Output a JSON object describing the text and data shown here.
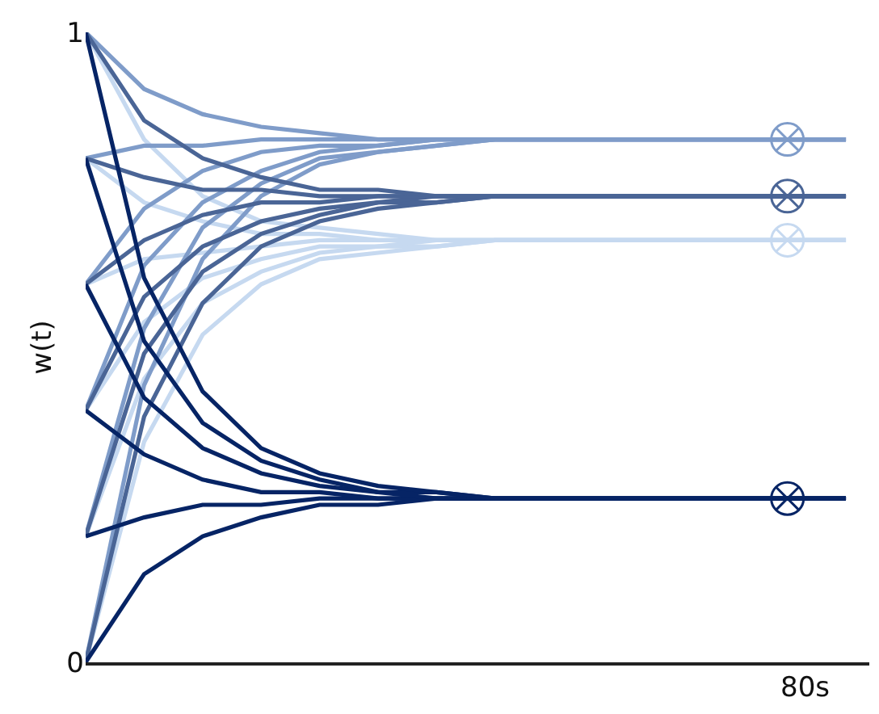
{
  "chart_data": {
    "type": "line",
    "ylabel": "w(t)",
    "annotations": [
      "80s"
    ],
    "categories": [
      null,
      null,
      null,
      null,
      null,
      null,
      null,
      null,
      null,
      null,
      null,
      null,
      null,
      null
    ],
    "ylim": [
      0,
      1
    ],
    "yticks": [
      0,
      1
    ],
    "line_style": "solid",
    "series": [
      {
        "color": "#c6d9f0",
        "values": [
          0,
          0.35,
          0.52,
          0.6,
          0.64,
          0.65,
          0.66,
          0.67,
          0.67,
          0.67,
          0.67,
          0.67,
          0.67,
          0.67
        ]
      },
      {
        "color": "#c6d9f0",
        "values": [
          0.2,
          0.45,
          0.57,
          0.62,
          0.65,
          0.66,
          0.66,
          0.67,
          0.67,
          0.67,
          0.67,
          0.67,
          0.67,
          0.67
        ]
      },
      {
        "color": "#c6d9f0",
        "values": [
          0.4,
          0.54,
          0.61,
          0.64,
          0.66,
          0.66,
          0.67,
          0.67,
          0.67,
          0.67,
          0.67,
          0.67,
          0.67,
          0.67
        ]
      },
      {
        "color": "#c6d9f0",
        "values": [
          0.6,
          0.64,
          0.65,
          0.66,
          0.67,
          0.67,
          0.67,
          0.67,
          0.67,
          0.67,
          0.67,
          0.67,
          0.67,
          0.67
        ]
      },
      {
        "color": "#c6d9f0",
        "values": [
          0.8,
          0.73,
          0.7,
          0.68,
          0.68,
          0.67,
          0.67,
          0.67,
          0.67,
          0.67,
          0.67,
          0.67,
          0.67,
          0.67
        ]
      },
      {
        "color": "#c6d9f0",
        "values": [
          1.0,
          0.83,
          0.74,
          0.7,
          0.69,
          0.68,
          0.67,
          0.67,
          0.67,
          0.67,
          0.67,
          0.67,
          0.67,
          0.67
        ]
      },
      {
        "color": "#7f9cc9",
        "values": [
          0,
          0.44,
          0.64,
          0.74,
          0.79,
          0.81,
          0.82,
          0.83,
          0.83,
          0.83,
          0.83,
          0.83,
          0.83,
          0.83
        ]
      },
      {
        "color": "#7f9cc9",
        "values": [
          0.2,
          0.53,
          0.69,
          0.76,
          0.8,
          0.81,
          0.82,
          0.83,
          0.83,
          0.83,
          0.83,
          0.83,
          0.83,
          0.83
        ]
      },
      {
        "color": "#7f9cc9",
        "values": [
          0.4,
          0.63,
          0.73,
          0.78,
          0.81,
          0.82,
          0.83,
          0.83,
          0.83,
          0.83,
          0.83,
          0.83,
          0.83,
          0.83
        ]
      },
      {
        "color": "#7f9cc9",
        "values": [
          0.6,
          0.72,
          0.78,
          0.81,
          0.82,
          0.82,
          0.83,
          0.83,
          0.83,
          0.83,
          0.83,
          0.83,
          0.83,
          0.83
        ]
      },
      {
        "color": "#7f9cc9",
        "values": [
          0.8,
          0.82,
          0.82,
          0.83,
          0.83,
          0.83,
          0.83,
          0.83,
          0.83,
          0.83,
          0.83,
          0.83,
          0.83,
          0.83
        ]
      },
      {
        "color": "#7f9cc9",
        "values": [
          1.0,
          0.91,
          0.87,
          0.85,
          0.84,
          0.83,
          0.83,
          0.83,
          0.83,
          0.83,
          0.83,
          0.83,
          0.83,
          0.83
        ]
      },
      {
        "color": "#4a6596",
        "values": [
          0,
          0.39,
          0.57,
          0.66,
          0.7,
          0.72,
          0.73,
          0.74,
          0.74,
          0.74,
          0.74,
          0.74,
          0.74,
          0.74
        ]
      },
      {
        "color": "#4a6596",
        "values": [
          0.2,
          0.49,
          0.62,
          0.68,
          0.71,
          0.73,
          0.73,
          0.74,
          0.74,
          0.74,
          0.74,
          0.74,
          0.74,
          0.74
        ]
      },
      {
        "color": "#4a6596",
        "values": [
          0.4,
          0.58,
          0.66,
          0.7,
          0.72,
          0.73,
          0.74,
          0.74,
          0.74,
          0.74,
          0.74,
          0.74,
          0.74,
          0.74
        ]
      },
      {
        "color": "#4a6596",
        "values": [
          0.6,
          0.67,
          0.71,
          0.73,
          0.73,
          0.74,
          0.74,
          0.74,
          0.74,
          0.74,
          0.74,
          0.74,
          0.74,
          0.74
        ]
      },
      {
        "color": "#4a6596",
        "values": [
          0.8,
          0.77,
          0.75,
          0.75,
          0.74,
          0.74,
          0.74,
          0.74,
          0.74,
          0.74,
          0.74,
          0.74,
          0.74,
          0.74
        ]
      },
      {
        "color": "#4a6596",
        "values": [
          1.0,
          0.86,
          0.8,
          0.77,
          0.75,
          0.75,
          0.74,
          0.74,
          0.74,
          0.74,
          0.74,
          0.74,
          0.74,
          0.74
        ]
      },
      {
        "color": "#062465",
        "values": [
          0,
          0.14,
          0.2,
          0.23,
          0.25,
          0.25,
          0.26,
          0.26,
          0.26,
          0.26,
          0.26,
          0.26,
          0.26,
          0.26
        ]
      },
      {
        "color": "#062465",
        "values": [
          0.2,
          0.23,
          0.25,
          0.25,
          0.26,
          0.26,
          0.26,
          0.26,
          0.26,
          0.26,
          0.26,
          0.26,
          0.26,
          0.26
        ]
      },
      {
        "color": "#062465",
        "values": [
          0.4,
          0.33,
          0.29,
          0.27,
          0.27,
          0.26,
          0.26,
          0.26,
          0.26,
          0.26,
          0.26,
          0.26,
          0.26,
          0.26
        ]
      },
      {
        "color": "#062465",
        "values": [
          0.6,
          0.42,
          0.34,
          0.3,
          0.28,
          0.27,
          0.26,
          0.26,
          0.26,
          0.26,
          0.26,
          0.26,
          0.26,
          0.26
        ]
      },
      {
        "color": "#062465",
        "values": [
          0.8,
          0.51,
          0.38,
          0.32,
          0.29,
          0.27,
          0.27,
          0.26,
          0.26,
          0.26,
          0.26,
          0.26,
          0.26,
          0.26
        ]
      },
      {
        "color": "#062465",
        "values": [
          1.0,
          0.61,
          0.43,
          0.34,
          0.3,
          0.28,
          0.27,
          0.26,
          0.26,
          0.26,
          0.26,
          0.26,
          0.26,
          0.26
        ]
      },
      {
        "type": "scatter",
        "marker": "cross",
        "color": "#7f9cc9",
        "values": [
          null,
          null,
          null,
          null,
          null,
          null,
          null,
          null,
          null,
          null,
          null,
          null,
          0.83,
          null
        ]
      },
      {
        "type": "scatter",
        "marker": "cross",
        "color": "#4a6596",
        "values": [
          null,
          null,
          null,
          null,
          null,
          null,
          null,
          null,
          null,
          null,
          null,
          null,
          0.74,
          null
        ]
      },
      {
        "type": "scatter",
        "marker": "cross",
        "color": "#c6d9f0",
        "values": [
          null,
          null,
          null,
          null,
          null,
          null,
          null,
          null,
          null,
          null,
          null,
          null,
          0.67,
          null
        ]
      },
      {
        "type": "scatter",
        "marker": "cross",
        "color": "#062465",
        "values": [
          null,
          null,
          null,
          null,
          null,
          null,
          null,
          null,
          null,
          null,
          null,
          null,
          0.26,
          null
        ]
      }
    ]
  }
}
